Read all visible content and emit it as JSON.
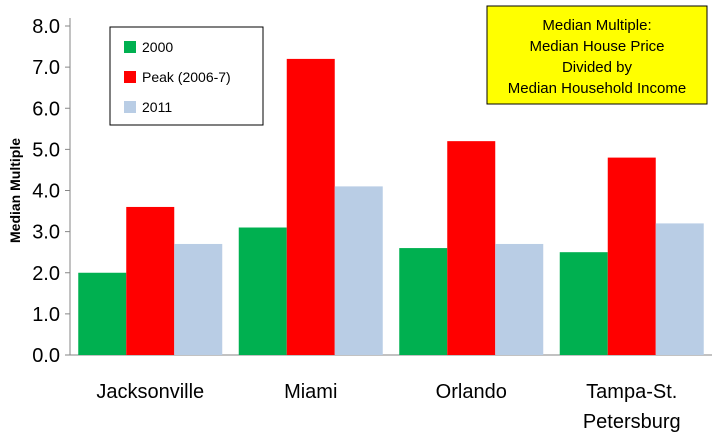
{
  "chart_data": {
    "type": "bar",
    "title": "",
    "xlabel": "",
    "ylabel": "Median Multiple",
    "ylim": [
      0,
      8
    ],
    "ytick_step": 1,
    "grid": false,
    "categories": [
      "Jacksonville",
      "Miami",
      "Orlando",
      "Tampa-St. Petersburg"
    ],
    "category_lines": [
      [
        "Jacksonville"
      ],
      [
        "Miami"
      ],
      [
        "Orlando"
      ],
      [
        "Tampa-St.",
        "Petersburg"
      ]
    ],
    "series": [
      {
        "name": "2000",
        "values": [
          2.0,
          3.1,
          2.6,
          2.5
        ],
        "color": "#00b050"
      },
      {
        "name": "Peak (2006-7)",
        "values": [
          3.6,
          7.2,
          5.2,
          4.8
        ],
        "color": "#ff0000"
      },
      {
        "name": "2011",
        "values": [
          2.7,
          4.1,
          2.7,
          3.2
        ],
        "color": "#b9cde5"
      }
    ],
    "legend_position": "top-left",
    "annotation": {
      "lines": [
        "Median Multiple:",
        "Median House Price",
        "Divided by",
        "Median Household Income"
      ],
      "background": "#ffff00",
      "position": "top-right"
    }
  }
}
